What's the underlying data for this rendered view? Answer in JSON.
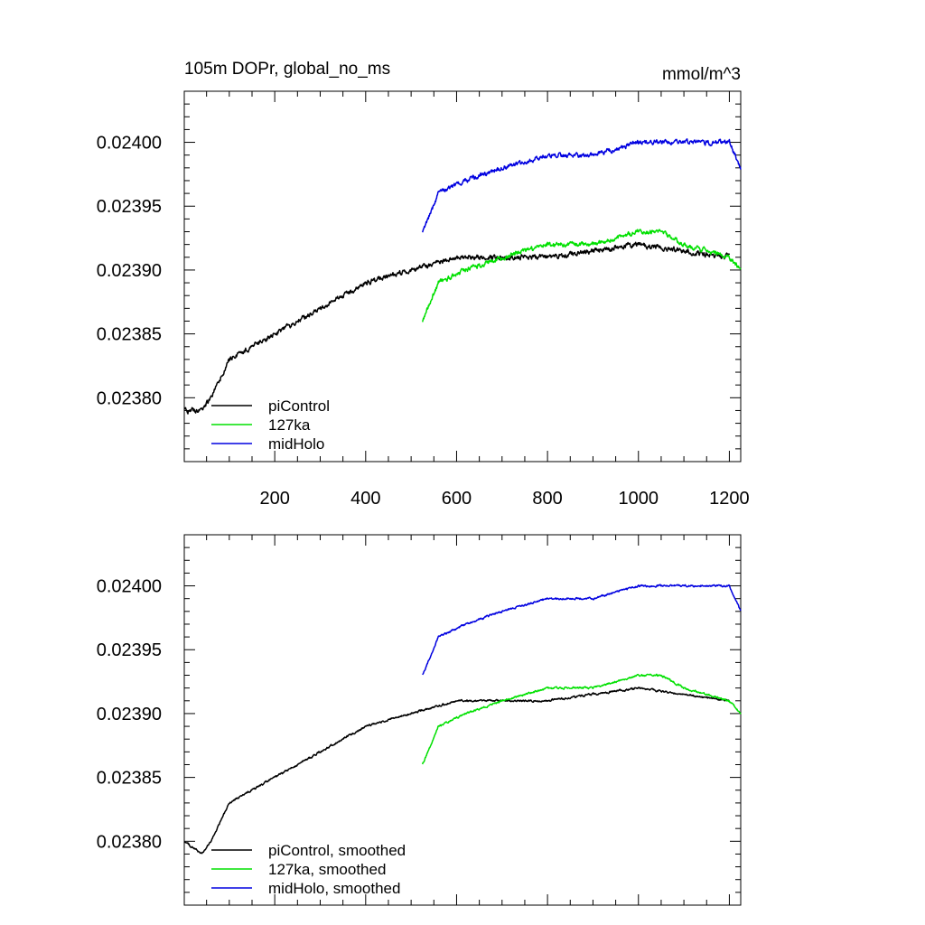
{
  "chart_data": [
    {
      "type": "line",
      "title": "105m DOPr, global_no_ms",
      "units": "mmol/m^3",
      "xlim": [
        1,
        1225
      ],
      "ylim": [
        0.02375,
        0.02404
      ],
      "xticks": [
        200,
        400,
        600,
        800,
        1000,
        1200
      ],
      "xtick_labels": [
        "200",
        "400",
        "600",
        "800",
        "1000",
        "1200"
      ],
      "yticks": [
        0.0238,
        0.02385,
        0.0239,
        0.02395,
        0.024
      ],
      "ytick_labels": [
        "0.02380",
        "0.02385",
        "0.02390",
        "0.02395",
        "0.02400"
      ],
      "legend": [
        "piControl",
        "127ka",
        "midHolo"
      ],
      "series": [
        {
          "name": "piControl",
          "color": "#000000",
          "x_start": 1,
          "x_end": 1200,
          "trend": [
            [
              1,
              0.02379
            ],
            [
              40,
              0.02379
            ],
            [
              60,
              0.0238
            ],
            [
              100,
              0.02383
            ],
            [
              200,
              0.02385
            ],
            [
              300,
              0.02387
            ],
            [
              400,
              0.02389
            ],
            [
              500,
              0.0239
            ],
            [
              600,
              0.02391
            ],
            [
              800,
              0.02391
            ],
            [
              1000,
              0.02392
            ],
            [
              1200,
              0.02391
            ]
          ],
          "noise": 1.5e-06
        },
        {
          "name": "127ka",
          "color": "#00e000",
          "x_start": 525,
          "x_end": 1225,
          "trend": [
            [
              525,
              0.02386
            ],
            [
              560,
              0.02389
            ],
            [
              620,
              0.0239
            ],
            [
              700,
              0.02391
            ],
            [
              800,
              0.02392
            ],
            [
              900,
              0.02392
            ],
            [
              1000,
              0.02393
            ],
            [
              1050,
              0.02393
            ],
            [
              1100,
              0.02392
            ],
            [
              1200,
              0.02391
            ],
            [
              1225,
              0.0239
            ]
          ],
          "noise": 1.4e-06
        },
        {
          "name": "midHolo",
          "color": "#0000e0",
          "x_start": 525,
          "x_end": 1225,
          "trend": [
            [
              525,
              0.02393
            ],
            [
              560,
              0.02396
            ],
            [
              620,
              0.02397
            ],
            [
              700,
              0.02398
            ],
            [
              800,
              0.02399
            ],
            [
              900,
              0.02399
            ],
            [
              1000,
              0.024
            ],
            [
              1100,
              0.024
            ],
            [
              1200,
              0.024
            ],
            [
              1225,
              0.02398
            ]
          ],
          "noise": 1.4e-06
        }
      ]
    },
    {
      "type": "line",
      "title": "",
      "xlim": [
        1,
        1225
      ],
      "ylim": [
        0.02375,
        0.02404
      ],
      "yticks": [
        0.0238,
        0.02385,
        0.0239,
        0.02395,
        0.024
      ],
      "ytick_labels": [
        "0.02380",
        "0.02385",
        "0.02390",
        "0.02395",
        "0.02400"
      ],
      "legend": [
        "piControl, smoothed",
        "127ka, smoothed",
        "midHolo, smoothed"
      ],
      "series": [
        {
          "name": "piControl, smoothed",
          "color": "#000000",
          "x_start": 1,
          "x_end": 1200,
          "trend": [
            [
              1,
              0.0238
            ],
            [
              40,
              0.02379
            ],
            [
              60,
              0.0238
            ],
            [
              100,
              0.02383
            ],
            [
              200,
              0.02385
            ],
            [
              300,
              0.02387
            ],
            [
              400,
              0.02389
            ],
            [
              500,
              0.0239
            ],
            [
              600,
              0.02391
            ],
            [
              800,
              0.02391
            ],
            [
              1000,
              0.02392
            ],
            [
              1200,
              0.02391
            ]
          ],
          "noise": 6e-07
        },
        {
          "name": "127ka, smoothed",
          "color": "#00e000",
          "x_start": 525,
          "x_end": 1225,
          "trend": [
            [
              525,
              0.02386
            ],
            [
              560,
              0.02389
            ],
            [
              620,
              0.0239
            ],
            [
              700,
              0.02391
            ],
            [
              800,
              0.02392
            ],
            [
              900,
              0.02392
            ],
            [
              1000,
              0.02393
            ],
            [
              1050,
              0.02393
            ],
            [
              1100,
              0.02392
            ],
            [
              1200,
              0.02391
            ],
            [
              1225,
              0.0239
            ]
          ],
          "noise": 6e-07
        },
        {
          "name": "midHolo, smoothed",
          "color": "#0000e0",
          "x_start": 525,
          "x_end": 1225,
          "trend": [
            [
              525,
              0.02393
            ],
            [
              560,
              0.02396
            ],
            [
              620,
              0.02397
            ],
            [
              700,
              0.02398
            ],
            [
              800,
              0.02399
            ],
            [
              900,
              0.02399
            ],
            [
              1000,
              0.024
            ],
            [
              1100,
              0.024
            ],
            [
              1200,
              0.024
            ],
            [
              1225,
              0.02398
            ]
          ],
          "noise": 6e-07
        }
      ]
    }
  ]
}
